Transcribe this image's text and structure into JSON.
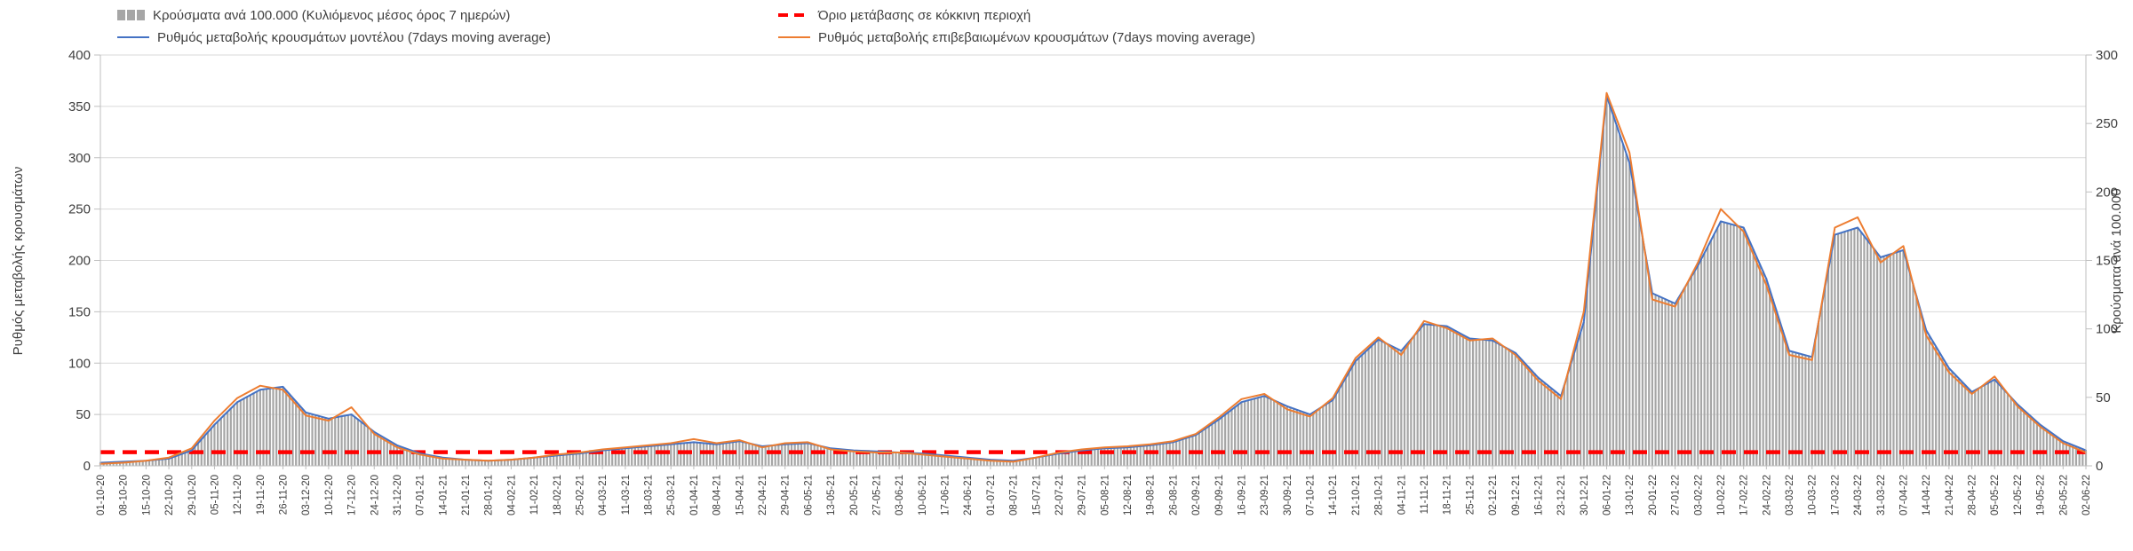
{
  "page_background": "#ffffff",
  "chart_data": {
    "type": "combo",
    "title": "",
    "legend_position": "top",
    "grid": true,
    "x": [
      "01-10-20",
      "08-10-20",
      "15-10-20",
      "22-10-20",
      "29-10-20",
      "05-11-20",
      "12-11-20",
      "19-11-20",
      "26-11-20",
      "03-12-20",
      "10-12-20",
      "17-12-20",
      "24-12-20",
      "31-12-20",
      "07-01-21",
      "14-01-21",
      "21-01-21",
      "28-01-21",
      "04-02-21",
      "11-02-21",
      "18-02-21",
      "25-02-21",
      "04-03-21",
      "11-03-21",
      "18-03-21",
      "25-03-21",
      "01-04-21",
      "08-04-21",
      "15-04-21",
      "22-04-21",
      "29-04-21",
      "06-05-21",
      "13-05-21",
      "20-05-21",
      "27-05-21",
      "03-06-21",
      "10-06-21",
      "17-06-21",
      "24-06-21",
      "01-07-21",
      "08-07-21",
      "15-07-21",
      "22-07-21",
      "29-07-21",
      "05-08-21",
      "12-08-21",
      "19-08-21",
      "26-08-21",
      "02-09-21",
      "09-09-21",
      "16-09-21",
      "23-09-21",
      "30-09-21",
      "07-10-21",
      "14-10-21",
      "21-10-21",
      "28-10-21",
      "04-11-21",
      "11-11-21",
      "18-11-21",
      "25-11-21",
      "02-12-21",
      "09-12-21",
      "16-12-21",
      "23-12-21",
      "30-12-21",
      "06-01-22",
      "13-01-22",
      "20-01-22",
      "27-01-22",
      "03-02-22",
      "10-02-22",
      "17-02-22",
      "24-02-22",
      "03-03-22",
      "10-03-22",
      "17-03-22",
      "24-03-22",
      "31-03-22",
      "07-04-22",
      "14-04-22",
      "21-04-22",
      "28-04-22",
      "05-05-22",
      "12-05-22",
      "19-05-22",
      "26-05-22",
      "02-06-22"
    ],
    "left_axis": {
      "label": "Ρυθμός μεταβολής κρουσμάτων",
      "min": 0,
      "max": 400,
      "tick": 50,
      "ticks": [
        0,
        50,
        100,
        150,
        200,
        250,
        300,
        350,
        400
      ]
    },
    "right_axis": {
      "label": "Κρούσματα ανά 100.000",
      "min": 0,
      "max": 300,
      "tick": 50,
      "ticks": [
        0,
        50,
        100,
        150,
        200,
        250,
        300
      ]
    },
    "series": [
      {
        "name": "Κρούσματα ανά 100.000 (Κυλιόμενος μέσος όρος 7 ημερών)",
        "type": "bar",
        "axis": "right",
        "color": "#a6a6a6",
        "values": [
          2,
          3,
          4,
          5,
          11,
          30,
          47,
          56,
          58,
          39,
          35,
          38,
          25,
          15,
          9,
          6,
          5,
          4,
          5,
          6,
          8,
          9,
          11,
          13,
          14,
          16,
          17,
          16,
          18,
          14,
          16,
          17,
          13,
          11,
          11,
          10,
          9,
          8,
          6,
          5,
          4,
          6,
          9,
          11,
          13,
          14,
          15,
          17,
          23,
          34,
          47,
          51,
          44,
          38,
          48,
          77,
          92,
          84,
          104,
          102,
          93,
          92,
          83,
          65,
          51,
          105,
          270,
          221,
          126,
          119,
          146,
          179,
          174,
          137,
          84,
          80,
          169,
          174,
          152,
          158,
          99,
          71,
          54,
          63,
          45,
          30,
          18,
          11
        ]
      },
      {
        "name": "Ρυθμός μεταβολής κρουσμάτων μοντέλου (7days moving average)",
        "type": "line",
        "axis": "left",
        "color": "#4472c4",
        "values": [
          3,
          4,
          5,
          7,
          15,
          40,
          62,
          74,
          77,
          52,
          46,
          50,
          33,
          20,
          12,
          8,
          6,
          5,
          6,
          8,
          10,
          12,
          15,
          17,
          19,
          21,
          23,
          21,
          24,
          19,
          21,
          22,
          17,
          15,
          14,
          13,
          12,
          10,
          8,
          6,
          5,
          8,
          12,
          15,
          17,
          18,
          20,
          23,
          30,
          45,
          62,
          68,
          58,
          50,
          64,
          102,
          123,
          112,
          138,
          136,
          124,
          122,
          110,
          86,
          68,
          140,
          360,
          295,
          168,
          158,
          195,
          238,
          232,
          182,
          112,
          106,
          225,
          232,
          203,
          210,
          132,
          95,
          72,
          84,
          60,
          40,
          24,
          15
        ]
      },
      {
        "name": "Ρυθμός μεταβολής επιβεβαιωμένων κρουσμάτων (7days moving average)",
        "type": "line",
        "axis": "left",
        "color": "#ed7d31",
        "values": [
          2,
          3,
          5,
          8,
          17,
          44,
          66,
          78,
          74,
          49,
          44,
          57,
          31,
          18,
          11,
          7,
          6,
          5,
          6,
          8,
          11,
          13,
          16,
          18,
          20,
          22,
          26,
          22,
          25,
          18,
          22,
          23,
          16,
          14,
          13,
          13,
          11,
          9,
          7,
          5,
          4,
          8,
          13,
          16,
          18,
          19,
          21,
          24,
          31,
          47,
          65,
          70,
          55,
          48,
          66,
          105,
          125,
          108,
          141,
          134,
          122,
          124,
          108,
          83,
          65,
          150,
          363,
          305,
          162,
          155,
          198,
          250,
          228,
          176,
          108,
          103,
          232,
          242,
          198,
          214,
          127,
          91,
          70,
          87,
          58,
          38,
          22,
          13
        ]
      },
      {
        "name": "Όριο μετάβασης σε κόκκινη περιοχή",
        "type": "threshold",
        "axis": "right",
        "color": "#ff0000",
        "value": 10
      }
    ],
    "style": {
      "grid_color": "#d9d9d9",
      "axis_color": "#bfbfbf",
      "tick_text_color": "#3f3f3f",
      "x_label_rotation": -90
    }
  }
}
